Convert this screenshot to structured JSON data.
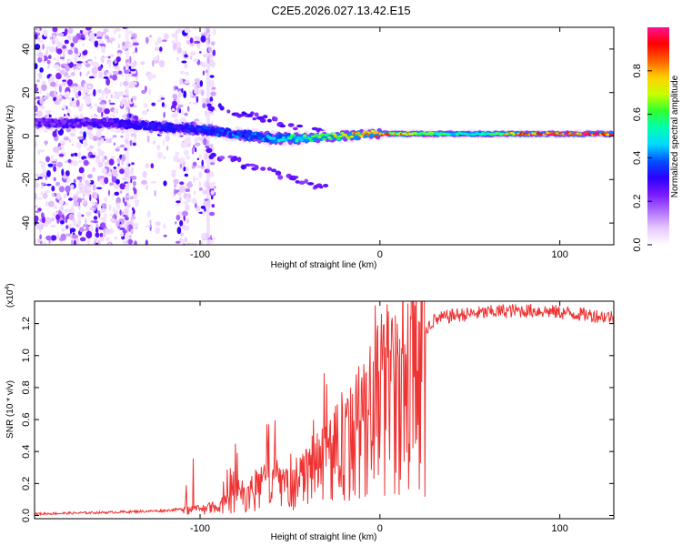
{
  "figure_title": "C2E5.2026.027.13.42.E15",
  "colors": {
    "snr_line": "#ee3333",
    "axis": "#000000",
    "colorbar_stops": [
      "#ffffff",
      "#e8c8ff",
      "#b070ff",
      "#7a1aff",
      "#2a00ff",
      "#0050ff",
      "#00d8ff",
      "#00ffb0",
      "#30ff30",
      "#c8ff00",
      "#ffd000",
      "#ff6000",
      "#ff0000",
      "#ff1090"
    ]
  },
  "chart_data": [
    {
      "type": "heatmap",
      "name": "spectrogram",
      "xlabel": "Height of straight line (km)",
      "ylabel": "Frequency (Hz)",
      "xlim": [
        -192,
        130
      ],
      "ylim": [
        -50,
        50
      ],
      "x_ticks": [
        -100,
        0,
        100
      ],
      "y_ticks": [
        -40,
        -20,
        0,
        20,
        40
      ],
      "x_tick_labels": [
        "-100",
        "0",
        "100"
      ],
      "y_tick_labels": [
        "-40",
        "-20",
        "0",
        "20",
        "40"
      ],
      "colorbar": {
        "label": "Normalized spectral amplitude",
        "range": [
          0,
          1
        ],
        "ticks": [
          0.0,
          0.2,
          0.4,
          0.6,
          0.8
        ],
        "tick_labels": [
          "0.0",
          "0.2",
          "0.4",
          "0.6",
          "0.8"
        ]
      },
      "ridge": {
        "description_points_x_km": [
          -192,
          -150,
          -120,
          -100,
          -80,
          -60,
          -40,
          -20,
          0,
          20,
          40,
          60,
          80,
          100,
          130
        ],
        "frequency_hz": [
          6,
          6,
          4,
          3,
          1,
          -1,
          -1,
          0,
          1,
          1,
          1,
          1,
          1,
          1,
          1
        ],
        "amplitude": [
          0.22,
          0.28,
          0.32,
          0.35,
          0.4,
          0.45,
          0.6,
          0.8,
          0.85,
          0.75,
          0.55,
          0.55,
          0.95,
          0.95,
          0.95
        ]
      }
    },
    {
      "type": "line",
      "name": "snr",
      "xlabel": "Height of straight line (km)",
      "ylabel": "SNR (10 * v/v)",
      "multiplier_label": "(x10",
      "multiplier_exp": "4",
      "multiplier_close": ")",
      "xlim": [
        -192,
        130
      ],
      "ylim": [
        -0.02,
        1.34
      ],
      "x_ticks": [
        -100,
        0,
        100
      ],
      "y_ticks": [
        0.0,
        0.2,
        0.4,
        0.6,
        0.8,
        1.0,
        1.2
      ],
      "x_tick_labels": [
        "-100",
        "0",
        "100"
      ],
      "y_tick_labels": [
        "0.0",
        "0.2",
        "0.4",
        "0.6",
        "0.8",
        "1.0",
        "1.2"
      ],
      "x": [
        -192,
        -150,
        -120,
        -110,
        -100,
        -90,
        -80,
        -70,
        -60,
        -50,
        -40,
        -30,
        -20,
        -10,
        0,
        10,
        20,
        30,
        40,
        50,
        60,
        70,
        80,
        90,
        100,
        110,
        120,
        130
      ],
      "y": [
        0.01,
        0.02,
        0.03,
        0.04,
        0.04,
        0.06,
        0.12,
        0.18,
        0.22,
        0.2,
        0.28,
        0.38,
        0.5,
        0.62,
        0.78,
        0.95,
        1.1,
        1.22,
        1.25,
        1.26,
        1.27,
        1.28,
        1.28,
        1.28,
        1.27,
        1.26,
        1.25,
        1.24
      ]
    }
  ]
}
